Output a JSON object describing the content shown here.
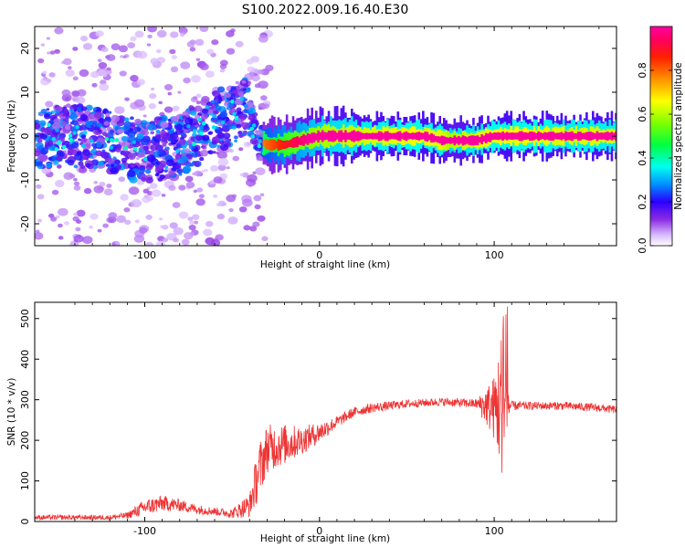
{
  "figure": {
    "title": "S100.2022.009.16.40.E30"
  },
  "chart_data": [
    {
      "type": "heatmap",
      "xlabel": "Height of straight line (km)",
      "ylabel": "Frequency (Hz)",
      "xlim": [
        -163,
        170
      ],
      "ylim": [
        -25,
        25
      ],
      "xticks": [
        -100,
        0,
        100
      ],
      "yticks": [
        -20,
        -10,
        0,
        10,
        20
      ],
      "grid": false,
      "colorbar": {
        "label": "Normalized spectral amplitude",
        "range": [
          0.0,
          1.0
        ],
        "ticks": [
          0.0,
          0.2,
          0.4,
          0.6,
          0.8
        ],
        "colormap": "gist_ncar_like"
      },
      "description_trace": {
        "x": [
          -160,
          -140,
          -120,
          -100,
          -80,
          -60,
          -50,
          -42,
          -35,
          -30,
          -20,
          -10,
          0,
          10,
          30,
          60,
          70,
          75,
          80,
          90,
          100,
          120,
          140,
          160,
          168
        ],
        "y": [
          0,
          0,
          -1,
          -4,
          -2,
          3,
          5,
          7,
          -1,
          -2,
          -2,
          -1,
          0,
          0,
          0,
          0,
          -1,
          -1,
          -1,
          -1,
          0,
          0,
          0,
          0,
          0
        ],
        "amplitude": [
          0.3,
          0.3,
          0.35,
          0.4,
          0.45,
          0.5,
          0.55,
          0.5,
          0.45,
          0.5,
          0.6,
          0.7,
          0.8,
          0.85,
          0.9,
          0.95,
          0.9,
          0.8,
          0.85,
          0.9,
          0.95,
          0.95,
          0.9,
          0.9,
          0.9
        ]
      }
    },
    {
      "type": "line",
      "xlabel": "Height of straight line (km)",
      "ylabel": "SNR (10 * v/v)",
      "xlim": [
        -163,
        170
      ],
      "ylim": [
        0,
        540
      ],
      "xticks": [
        -100,
        0,
        100
      ],
      "yticks": [
        0,
        100,
        200,
        300,
        400,
        500
      ],
      "grid": false,
      "color": "#ee3333",
      "envelope": {
        "x": [
          -163,
          -120,
          -110,
          -100,
          -90,
          -80,
          -70,
          -60,
          -50,
          -40,
          -35,
          -30,
          -20,
          -10,
          0,
          10,
          20,
          30,
          50,
          70,
          90,
          100,
          104,
          106,
          110,
          120,
          140,
          160,
          170
        ],
        "y": [
          10,
          10,
          15,
          35,
          45,
          40,
          30,
          25,
          20,
          40,
          120,
          180,
          190,
          200,
          220,
          245,
          270,
          280,
          290,
          295,
          290,
          280,
          290,
          290,
          285,
          285,
          285,
          280,
          275
        ],
        "noise": [
          6,
          6,
          8,
          20,
          20,
          15,
          12,
          10,
          12,
          30,
          70,
          60,
          50,
          35,
          25,
          15,
          12,
          12,
          10,
          10,
          12,
          80,
          180,
          150,
          12,
          10,
          10,
          10,
          10
        ]
      }
    }
  ]
}
